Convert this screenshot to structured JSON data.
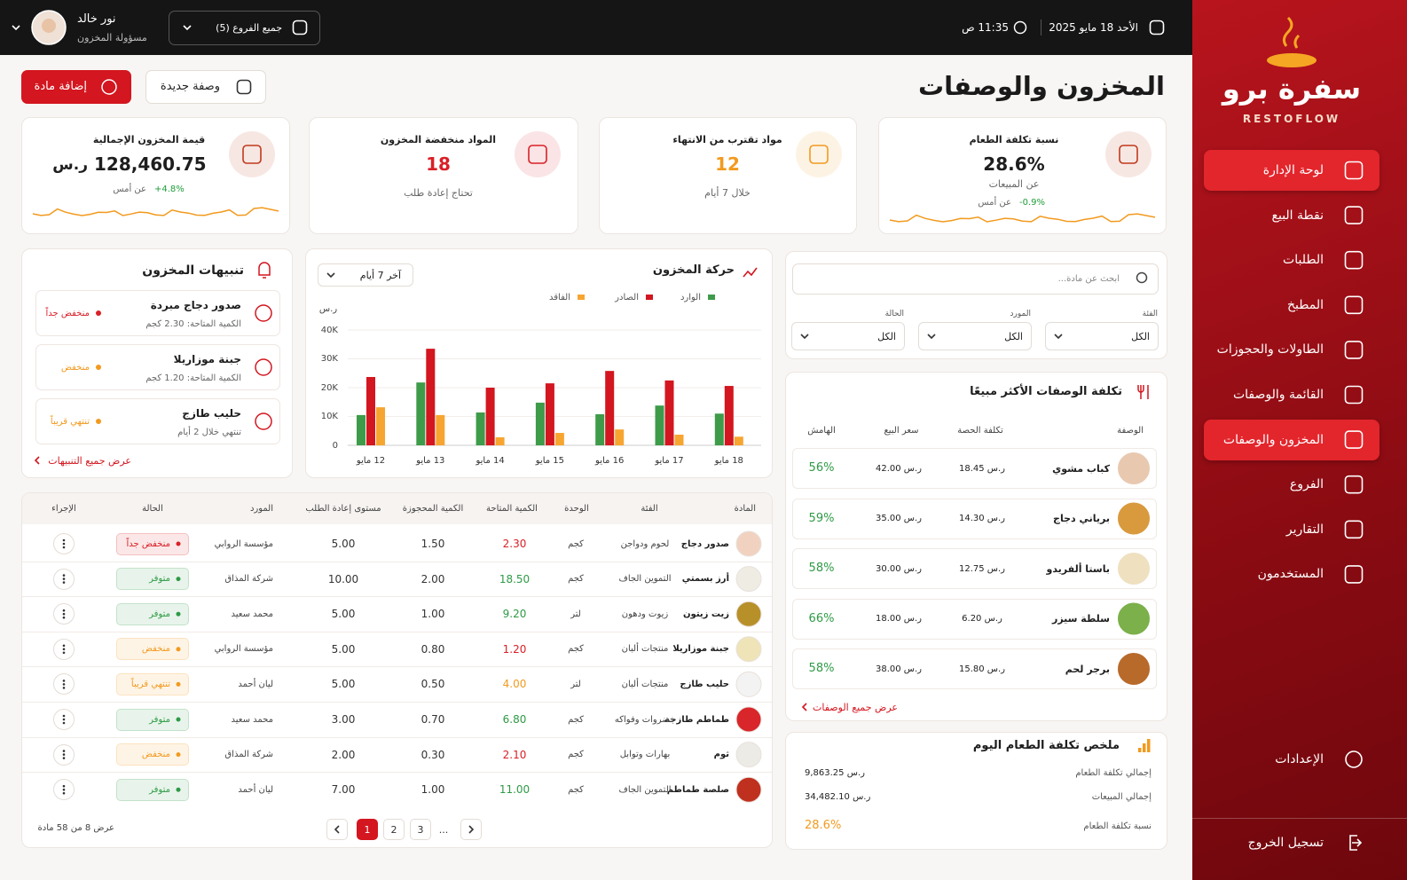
{
  "sidebar": {
    "brand": "سفرة برو",
    "brand_latin": "RESTOFLOW",
    "nav": [
      {
        "label": "لوحة الإدارة",
        "active": true
      },
      {
        "label": "نقطة البيع"
      },
      {
        "label": "الطلبات"
      },
      {
        "label": "المطبخ"
      },
      {
        "label": "الطاولات والحجوزات"
      },
      {
        "label": "القائمة والوصفات"
      },
      {
        "label": "المخزون والوصفات",
        "active": true
      },
      {
        "label": "الفروع"
      },
      {
        "label": "التقارير"
      },
      {
        "label": "المستخدمون"
      }
    ],
    "settings": "الإعدادات",
    "logout": "تسجيل الخروج"
  },
  "topbar": {
    "date": "الأحد 18 مايو 2025",
    "time": "11:35 ص",
    "branch_select": "جميع الفروع (5)",
    "user_name": "نور خالد",
    "user_role": "مسؤولة المخزون"
  },
  "header": {
    "title": "المخزون والوصفات",
    "new_recipe": "وصفة جديدة",
    "add_item": "إضافة مادة"
  },
  "kpis": [
    {
      "title": "نسبة تكلفة الطعام",
      "value": "28.6%",
      "note": "عن المبيعات",
      "change": "-0.9%",
      "change_note": "عن أمس",
      "value_color": "#1e1e1e",
      "accent": "#c0391b",
      "change_color": "#1f9d3a"
    },
    {
      "title": "مواد تقترب من الانتهاء",
      "value": "12",
      "note": "خلال 7 أيام",
      "value_color": "#f29a1f",
      "accent": "#f29a1f"
    },
    {
      "title": "المواد منخفضة المخزون",
      "value": "18",
      "note": "تحتاج إعادة طلب",
      "value_color": "#d92027",
      "accent": "#d92027"
    },
    {
      "title": "قيمة المخزون الإجمالية",
      "value": "128,460.75",
      "unit": "ر.س",
      "change": "+4.8%",
      "change_note": "عن أمس",
      "value_color": "#1e1e1e",
      "accent": "#c0391b",
      "change_color": "#1f9d3a"
    }
  ],
  "alerts": {
    "title": "تنبيهات المخزون",
    "items": [
      {
        "name": "صدور دجاج مبردة",
        "detail": "الكمية المتاحة: 2.30 كجم",
        "status": "منخفض جداً",
        "color": "#d92027"
      },
      {
        "name": "جبنة موزاريلا",
        "detail": "الكمية المتاحة: 1.20 كجم",
        "status": "منخفض",
        "color": "#f29a1f"
      },
      {
        "name": "حليب طازج",
        "detail": "تنتهي خلال 2 أيام",
        "status": "تنتهي قريباً",
        "color": "#f29a1f"
      }
    ],
    "view_all": "عرض جميع التنبيهات"
  },
  "chart_data": {
    "type": "bar",
    "title": "حركة المخزون",
    "period": "آخر 7 أيام",
    "y_unit": "ر.س",
    "categories": [
      "12 مايو",
      "13 مايو",
      "14 مايو",
      "15 مايو",
      "16 مايو",
      "17 مايو",
      "18 مايو"
    ],
    "series": [
      {
        "name": "الوارد",
        "color": "#3e9b4a",
        "values": [
          10500,
          21800,
          11400,
          14800,
          10800,
          13800,
          11000
        ]
      },
      {
        "name": "الصادر",
        "color": "#d3161f",
        "values": [
          23700,
          33500,
          20000,
          21500,
          25800,
          22500,
          20600
        ]
      },
      {
        "name": "الفاقد",
        "color": "#f7a531",
        "values": [
          13200,
          10500,
          2800,
          4300,
          5500,
          3700,
          3000
        ]
      }
    ],
    "ylim": [
      0,
      40000
    ],
    "yticks": [
      0,
      {
        "value": 10000,
        "label": "10K"
      },
      {
        "value": 20000,
        "label": "20K"
      },
      {
        "value": 30000,
        "label": "30K"
      },
      {
        "value": 40000,
        "label": "40K"
      }
    ],
    "grid": true
  },
  "filters": {
    "search_placeholder": "ابحث عن مادة...",
    "fields": [
      {
        "label": "الفئة",
        "value": "الكل"
      },
      {
        "label": "المورد",
        "value": "الكل"
      },
      {
        "label": "الحالة",
        "value": "الكل"
      }
    ]
  },
  "recipes": {
    "title": "تكلفة الوصفات الأكثر مبيعًا",
    "headers": [
      "الوصفة",
      "تكلفة الحصة",
      "سعر البيع",
      "الهامش"
    ],
    "rows": [
      {
        "name": "كباب مشوي",
        "cost": "18.45 ر.س",
        "price": "42.00 ر.س",
        "margin": "56%"
      },
      {
        "name": "برياني دجاج",
        "cost": "14.30 ر.س",
        "price": "35.00 ر.س",
        "margin": "59%"
      },
      {
        "name": "باستا ألفريدو",
        "cost": "12.75 ر.س",
        "price": "30.00 ر.س",
        "margin": "58%"
      },
      {
        "name": "سلطة سيزر",
        "cost": "6.20 ر.س",
        "price": "18.00 ر.س",
        "margin": "66%"
      },
      {
        "name": "برجر لحم",
        "cost": "15.80 ر.س",
        "price": "38.00 ر.س",
        "margin": "58%"
      }
    ],
    "view_all": "عرض جميع الوصفات"
  },
  "food_cost_summary": {
    "title": "ملخص تكلفة الطعام اليوم",
    "rows": [
      {
        "label": "إجمالي تكلفة الطعام",
        "value": "9,863.25 ر.س"
      },
      {
        "label": "إجمالي المبيعات",
        "value": "34,482.10 ر.س"
      },
      {
        "label": "نسبة تكلفة الطعام",
        "value": "28.6%"
      }
    ]
  },
  "inventory_table": {
    "headers": [
      "المادة",
      "الفئة",
      "الوحدة",
      "الكمية المتاحة",
      "الكمية المحجوزة",
      "مستوى إعادة الطلب",
      "المورد",
      "الحالة",
      "الإجراء"
    ],
    "rows": [
      {
        "item": "صدور دجاج",
        "category": "لحوم ودواجن",
        "unit": "كجم",
        "available": "2.30",
        "reserved": "1.50",
        "reorder_level": "5.00",
        "supplier": "مؤسسة الروابي",
        "status": "منخفض جداً",
        "color": "#d92027"
      },
      {
        "item": "أرز بسمتي",
        "category": "التموين الجاف",
        "unit": "كجم",
        "available": "18.50",
        "reserved": "2.00",
        "reorder_level": "10.00",
        "supplier": "شركة المذاق",
        "status": "متوفر",
        "color": "#2e9a45"
      },
      {
        "item": "زيت زيتون",
        "category": "زيوت ودهون",
        "unit": "لتر",
        "available": "9.20",
        "reserved": "1.00",
        "reorder_level": "5.00",
        "supplier": "محمد سعيد",
        "status": "متوفر",
        "color": "#2e9a45"
      },
      {
        "item": "جبنة موزاريلا",
        "category": "منتجات ألبان",
        "unit": "كجم",
        "available": "1.20",
        "reserved": "0.80",
        "reorder_level": "5.00",
        "supplier": "مؤسسة الروابي",
        "status": "منخفض",
        "color": "#d92027",
        "status_color": "#f29a1f"
      },
      {
        "item": "حليب طازج",
        "category": "منتجات ألبان",
        "unit": "لتر",
        "available": "4.00",
        "reserved": "0.50",
        "reorder_level": "5.00",
        "supplier": "ليان أحمد",
        "status": "تنتهي قريباً",
        "color": "#f29a1f"
      },
      {
        "item": "طماطم طازجة",
        "category": "خضروات وفواكه",
        "unit": "كجم",
        "available": "6.80",
        "reserved": "0.70",
        "reorder_level": "3.00",
        "supplier": "محمد سعيد",
        "status": "متوفر",
        "color": "#2e9a45"
      },
      {
        "item": "ثوم",
        "category": "بهارات وتوابل",
        "unit": "كجم",
        "available": "2.10",
        "reserved": "0.30",
        "reorder_level": "2.00",
        "supplier": "شركة المذاق",
        "status": "منخفض",
        "color": "#d92027",
        "status_color": "#f29a1f"
      },
      {
        "item": "صلصة طماطم",
        "category": "التموين الجاف",
        "unit": "كجم",
        "available": "11.00",
        "reserved": "1.00",
        "reorder_level": "7.00",
        "supplier": "ليان أحمد",
        "status": "متوفر",
        "color": "#2e9a45"
      }
    ],
    "pages": [
      "1",
      "2",
      "3",
      "..."
    ],
    "active_page": 0,
    "footer": "عرض 8 من 58 مادة"
  }
}
